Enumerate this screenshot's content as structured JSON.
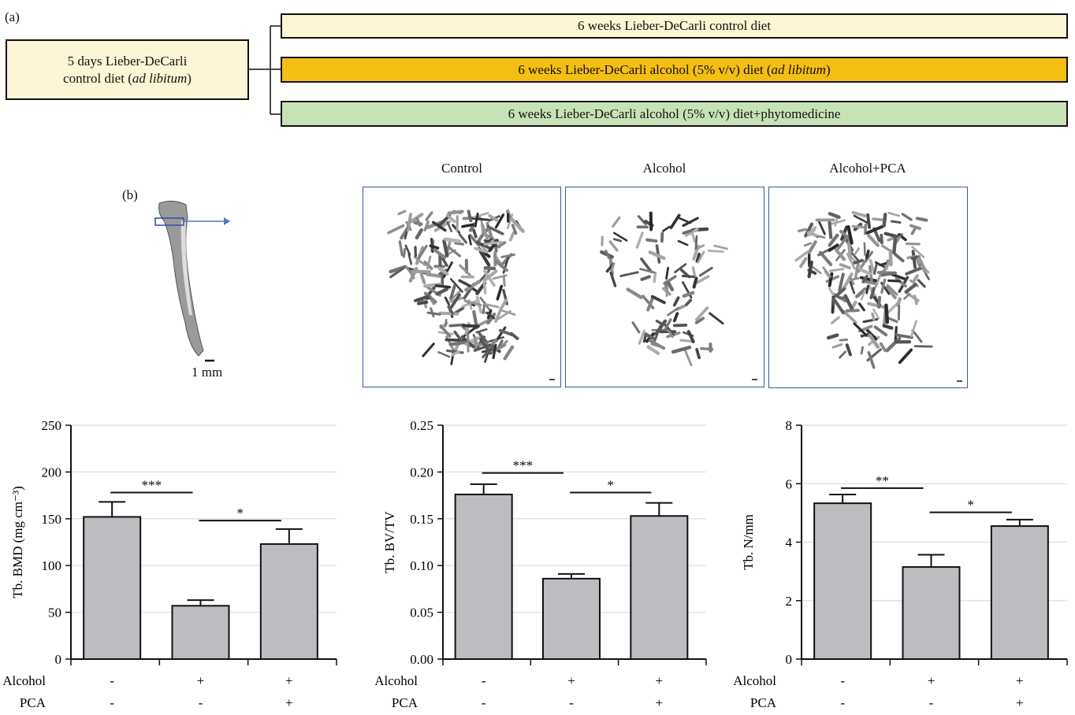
{
  "panel_a": {
    "label": "(a)",
    "start_box": {
      "line1": "5 days Lieber-DeCarli",
      "line2_prefix": "control diet (",
      "line2_italic": "ad libitum",
      "line2_suffix": ")",
      "color": "#fdf6d6"
    },
    "groups": [
      {
        "prefix": "6 weeks Lieber-DeCarli control diet",
        "italic": "",
        "suffix": "",
        "color": "#fdf6d4"
      },
      {
        "prefix": "6 weeks Lieber-DeCarli alcohol (5% v/v) diet (",
        "italic": "ad libitum",
        "suffix": ")",
        "color": "#f5be13"
      },
      {
        "prefix": "6 weeks Lieber-DeCarli alcohol (5% v/v) diet+phytomedicine",
        "italic": "",
        "suffix": "",
        "color": "#c8e2b8"
      }
    ]
  },
  "panel_b": {
    "label": "(b)",
    "scale_label": "1 mm",
    "images": [
      {
        "title": "Control"
      },
      {
        "title": "Alcohol"
      },
      {
        "title": "Alcohol+PCA"
      }
    ]
  },
  "conditions": {
    "row_labels": [
      "Alcohol",
      "PCA"
    ],
    "alcohol": [
      "-",
      "+",
      "+"
    ],
    "pca": [
      "-",
      "-",
      "+"
    ]
  },
  "chart_data": [
    {
      "type": "bar",
      "ylabel": "Tb. BMD (mg cm⁻³)",
      "ylim": [
        0,
        250
      ],
      "ticks": [
        "0",
        "50",
        "100",
        "150",
        "200",
        "250"
      ],
      "tick_values": [
        0,
        50,
        100,
        150,
        200,
        250
      ],
      "values": [
        152,
        57,
        123
      ],
      "errors": [
        16,
        6,
        16
      ],
      "grid": true,
      "bar_color": "#bcbdc0",
      "significance": [
        {
          "from": 0,
          "to": 1,
          "label": "***",
          "y": 178
        },
        {
          "from": 1,
          "to": 2,
          "label": "*",
          "y": 148
        }
      ]
    },
    {
      "type": "bar",
      "ylabel": "Tb. BV/TV",
      "ylim": [
        0,
        0.25
      ],
      "ticks": [
        "0.00",
        "0.05",
        "0.10",
        "0.15",
        "0.20",
        "0.25"
      ],
      "tick_values": [
        0,
        0.05,
        0.1,
        0.15,
        0.2,
        0.25
      ],
      "values": [
        0.176,
        0.086,
        0.153
      ],
      "errors": [
        0.011,
        0.005,
        0.014
      ],
      "grid": true,
      "bar_color": "#bcbdc0",
      "significance": [
        {
          "from": 0,
          "to": 1,
          "label": "***",
          "y": 0.199
        },
        {
          "from": 1,
          "to": 2,
          "label": "*",
          "y": 0.178
        }
      ]
    },
    {
      "type": "bar",
      "ylabel": "Tb. N/mm",
      "ylim": [
        0,
        8
      ],
      "ticks": [
        "0",
        "2",
        "4",
        "6",
        "8"
      ],
      "tick_values": [
        0,
        2,
        4,
        6,
        8
      ],
      "values": [
        5.33,
        3.15,
        4.55
      ],
      "errors": [
        0.3,
        0.42,
        0.22
      ],
      "grid": true,
      "bar_color": "#bcbdc0",
      "significance": [
        {
          "from": 0,
          "to": 1,
          "label": "**",
          "y": 5.85
        },
        {
          "from": 1,
          "to": 2,
          "label": "*",
          "y": 5.02
        }
      ]
    }
  ]
}
